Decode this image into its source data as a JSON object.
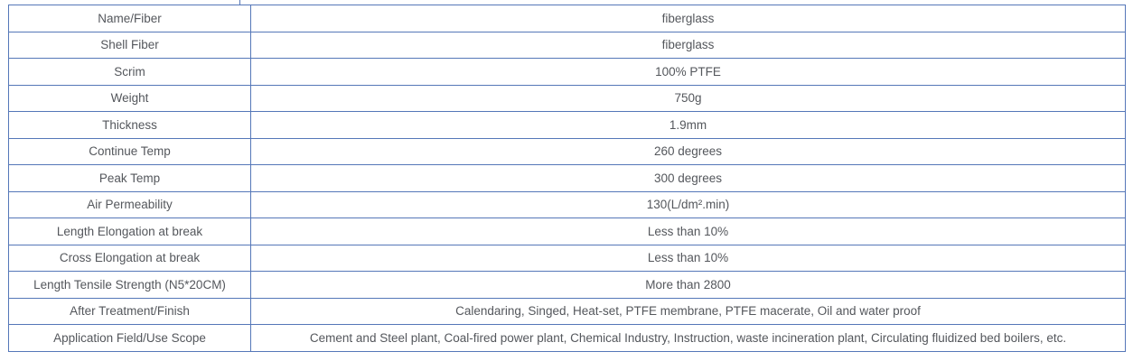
{
  "colors": {
    "table_border": "#5577b8",
    "text": "#54575c",
    "background": "#ffffff"
  },
  "spec_table": {
    "rows": [
      {
        "label": "Name/Fiber",
        "value": "fiberglass"
      },
      {
        "label": "Shell Fiber",
        "value": "fiberglass"
      },
      {
        "label": "Scrim",
        "value": "100% PTFE"
      },
      {
        "label": "Weight",
        "value": "750g"
      },
      {
        "label": "Thickness",
        "value": "1.9mm"
      },
      {
        "label": "Continue Temp",
        "value": "260 degrees"
      },
      {
        "label": "Peak Temp",
        "value": "300 degrees"
      },
      {
        "label": "Air Permeability",
        "value": "130(L/dm².min)"
      },
      {
        "label": "Length Elongation at break",
        "value": "Less than 10%"
      },
      {
        "label": "Cross Elongation at break",
        "value": "Less than 10%"
      },
      {
        "label": "Length Tensile Strength (N5*20CM)",
        "value": "More than 2800"
      },
      {
        "label": "After Treatment/Finish",
        "value": "Calendaring, Singed, Heat-set, PTFE membrane, PTFE macerate, Oil and water proof"
      },
      {
        "label": "Application Field/Use Scope",
        "value": "Cement and Steel plant, Coal-fired power plant, Chemical Industry, Instruction, waste incineration plant, Circulating fluidized bed boilers, etc."
      }
    ]
  }
}
